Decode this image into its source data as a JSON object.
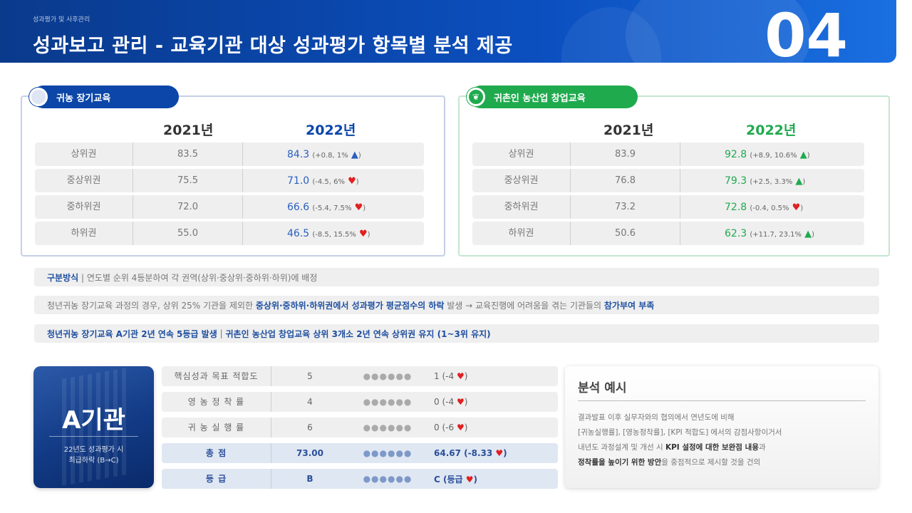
{
  "header": {
    "subtitle": "성과평가 및 사후관리",
    "title": "성과보고 관리 - 교육기관 대상 성과평가 항목별 분석 제공",
    "number": "04"
  },
  "left_panel": {
    "label": "귀농 장기교육",
    "year_prev": "2021년",
    "year_curr": "2022년",
    "rows": [
      {
        "name": "상위권",
        "prev": "83.5",
        "curr": "84.3",
        "delta": "(+0.8, 1%",
        "arrow": "▲"
      },
      {
        "name": "중상위권",
        "prev": "75.5",
        "curr": "71.0",
        "delta": "(-4.5, 6%",
        "arrow": "♥"
      },
      {
        "name": "중하위권",
        "prev": "72.0",
        "curr": "66.6",
        "delta": "(-5.4, 7.5%",
        "arrow": "♥"
      },
      {
        "name": "하위권",
        "prev": "55.0",
        "curr": "46.5",
        "delta": "(-8.5, 15.5%",
        "arrow": "♥"
      }
    ]
  },
  "right_panel": {
    "label": "귀촌인 농산업 창업교육",
    "year_prev": "2021년",
    "year_curr": "2022년",
    "rows": [
      {
        "name": "상위권",
        "prev": "83.9",
        "curr": "92.8",
        "delta": "(+8.9, 10.6%",
        "arrow": "▲"
      },
      {
        "name": "중상위권",
        "prev": "76.8",
        "curr": "79.3",
        "delta": "(+2.5, 3.3%",
        "arrow": "▲"
      },
      {
        "name": "중하위권",
        "prev": "73.2",
        "curr": "72.8",
        "delta": "(-0.4, 0.5%",
        "arrow": "♥"
      },
      {
        "name": "하위권",
        "prev": "50.6",
        "curr": "62.3",
        "delta": "(+11.7, 23.1%",
        "arrow": "▲"
      }
    ]
  },
  "notes": {
    "n1_bold": "구분방식",
    "n1_text": "| 연도별 순위 4등분하여 각 권역(상위·중상위·중하위·하위)에 배정",
    "n2_text": "청년귀농 장기교육 과정의 경우, 상위 25% 기관을 제외한",
    "n2_bold": "중상위·중하위·하위권에서 성과평가 평균점수의 하락",
    "n2_text2": "발생 → 교육진행에 어려움을 겪는 기관들의",
    "n2_bold2": "참가부여 부족",
    "n3_bold": "청년귀농 장기교육 A기관 2년 연속 5등급 발생",
    "n3_sep": "|",
    "n3_bold2": "귀촌인 농산업 창업교육 상위 3개소 2년 연속 상위권 유지 (1~3위 유지)"
  },
  "acard": {
    "name": "A기관",
    "desc1": "22년도 성과평가 시",
    "desc2": "최급하락 (B→C)"
  },
  "metrics": [
    {
      "name": "핵심성과 목표 적합도",
      "score": "5",
      "dots": "●●●●●●",
      "result": "1 (-4",
      "mark": "♥",
      "tail": ")"
    },
    {
      "name": "영 농 정 착 률",
      "score": "4",
      "dots": "●●●●●●",
      "result": "0 (-4",
      "mark": "♥",
      "tail": ")"
    },
    {
      "name": "귀 농 실 행 률",
      "score": "6",
      "dots": "●●●●●●",
      "result": "0 (-6",
      "mark": "♥",
      "tail": ")"
    },
    {
      "name": "총 점",
      "score": "73.00",
      "dots": "●●●●●●",
      "result": "64.67 (-8.33",
      "mark": "♥",
      "tail": ")"
    },
    {
      "name": "등 급",
      "score": "B",
      "dots": "●●●●●●",
      "result": "C (등급",
      "mark": "♥",
      "tail": ")"
    }
  ],
  "analysis": {
    "title": "분석 예시",
    "l1": "결과발표 이후 실무자와의 협의에서 연년도에 비해",
    "l2": "[귀농실행률], [영농정착률], [KPI 적합도] 에서의 감점사항이거서",
    "l3": "내년도 과정설계 및 개선 시",
    "l3b": "KPI 설정에 대한 보완점 내용",
    "l3c": "과",
    "l4b": "정착률을 높이기 위한 방안",
    "l4c": "을 중점적으로 제시할 것을 건의"
  },
  "colors": {
    "brand_blue": "#0b46a8",
    "brand_green": "#1faa4e",
    "down_red": "#e02020"
  }
}
